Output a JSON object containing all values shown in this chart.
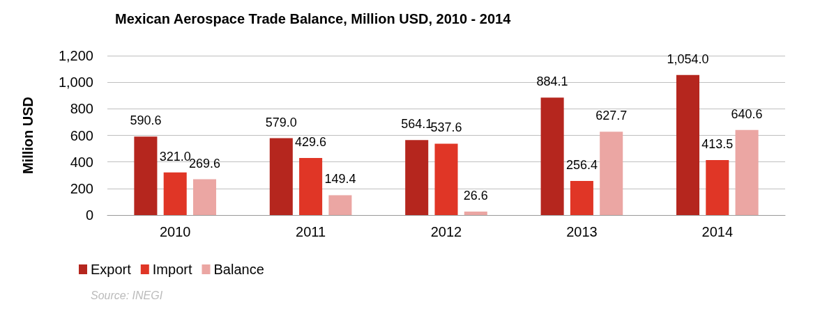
{
  "chart_data": {
    "type": "bar",
    "title": "Mexican Aerospace Trade Balance, Million USD, 2010 - 2014",
    "ylabel": "Million USD",
    "categories": [
      "2010",
      "2011",
      "2012",
      "2013",
      "2014"
    ],
    "series": [
      {
        "name": "Export",
        "color": "#b5261e",
        "values": [
          590.6,
          579.0,
          564.1,
          884.1,
          1054.0
        ],
        "value_labels": [
          "590.6",
          "579.0",
          "564.1",
          "884.1",
          "1,054.0"
        ]
      },
      {
        "name": "Import",
        "color": "#e03626",
        "values": [
          321.0,
          429.6,
          537.6,
          256.4,
          413.5
        ],
        "value_labels": [
          "321.0",
          "429.6",
          "537.6",
          "256.4",
          "413.5"
        ]
      },
      {
        "name": "Balance",
        "color": "#eba6a3",
        "values": [
          269.6,
          149.4,
          26.6,
          627.7,
          640.6
        ],
        "value_labels": [
          "269.6",
          "149.4",
          "26.6",
          "627.7",
          "640.6"
        ]
      }
    ],
    "ylim": [
      0,
      1200
    ],
    "yticks": [
      0,
      200,
      400,
      600,
      800,
      {
        "value": 1000,
        "label": "1,000"
      },
      {
        "value": 1200,
        "label": "1,200"
      }
    ],
    "grid": "y",
    "legend": "bottom left",
    "annotations": [
      "Source: INEGI"
    ]
  }
}
